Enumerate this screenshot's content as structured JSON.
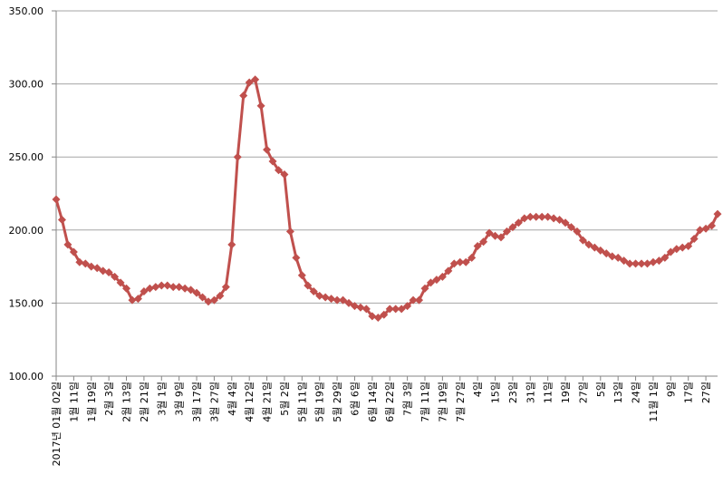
{
  "chart_data": {
    "type": "line",
    "categories": [
      "2017년 01월 02일",
      null,
      null,
      "1월 11일",
      null,
      null,
      "1월 19일",
      null,
      null,
      "2월 3일",
      null,
      null,
      "2월 13일",
      null,
      null,
      "2월 21일",
      null,
      null,
      "3월 1일",
      null,
      null,
      "3월 9일",
      null,
      null,
      "3월 17일",
      null,
      null,
      "3월 27일",
      null,
      null,
      "4월 4일",
      null,
      null,
      "4월 12일",
      null,
      null,
      "4월 21일",
      null,
      null,
      "5월 2일",
      null,
      null,
      "5월 11일",
      null,
      null,
      "5월 19일",
      null,
      null,
      "5월 29일",
      null,
      null,
      "6월 6일",
      null,
      null,
      "6월 14일",
      null,
      null,
      "6월 22일",
      null,
      null,
      "7월 3일",
      null,
      null,
      "7월 11일",
      null,
      null,
      "7월 19일",
      null,
      null,
      "7월 27일",
      null,
      null,
      "4일",
      null,
      null,
      "15일",
      null,
      null,
      "23일",
      null,
      null,
      "31일",
      null,
      null,
      "11일",
      null,
      null,
      "19일",
      null,
      null,
      "27일",
      null,
      null,
      "5일",
      null,
      null,
      "13일",
      null,
      null,
      "24일",
      null,
      null,
      "11월 1일",
      null,
      null,
      "9일",
      null,
      null,
      "17일",
      null,
      null,
      "27일",
      null,
      null
    ],
    "series": [
      {
        "color": "#c0504d",
        "values": [
          221,
          207,
          190,
          185,
          178,
          177,
          175,
          174,
          172,
          171,
          168,
          164,
          160,
          152,
          153,
          158,
          160,
          161,
          162,
          162,
          161,
          161,
          160,
          159,
          157,
          154,
          151,
          152,
          155,
          161,
          190,
          250,
          292,
          301,
          303,
          285,
          255,
          247,
          241,
          238,
          199,
          181,
          169,
          162,
          158,
          155,
          154,
          153,
          152,
          152,
          150,
          148,
          147,
          146,
          141,
          140,
          142,
          146,
          146,
          146,
          148,
          152,
          152,
          160,
          164,
          166,
          168,
          172,
          177,
          178,
          178,
          181,
          189,
          192,
          198,
          196,
          195,
          199,
          202,
          205,
          208,
          209,
          209,
          209,
          209,
          208,
          207,
          205,
          202,
          199,
          193,
          190,
          188,
          186,
          184,
          182,
          181,
          179,
          177,
          177,
          177,
          177,
          178,
          179,
          181,
          185,
          187,
          188,
          189,
          194,
          200,
          201,
          203,
          211
        ]
      }
    ],
    "ylim": [
      100,
      350
    ],
    "yticks": [
      {
        "value": 100,
        "label": "100.00"
      },
      {
        "value": 150,
        "label": "150.00"
      },
      {
        "value": 200,
        "label": "200.00"
      },
      {
        "value": 250,
        "label": "250.00"
      },
      {
        "value": 300,
        "label": "300.00"
      },
      {
        "value": 350,
        "label": "350.00"
      }
    ],
    "grid": true
  }
}
